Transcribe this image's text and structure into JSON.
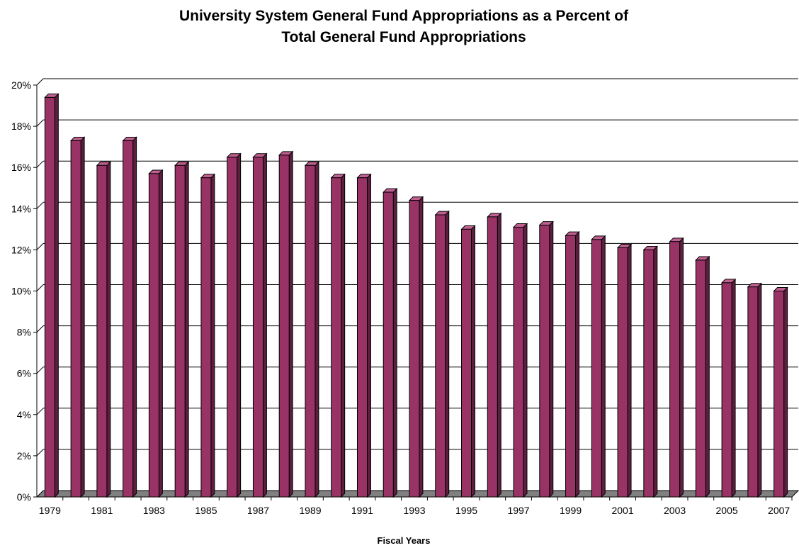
{
  "chart_data": {
    "type": "bar",
    "title_lines": [
      "University System General Fund Appropriations as a Percent of",
      "Total General Fund Appropriations"
    ],
    "xlabel": "Fiscal Years",
    "ylabel": "",
    "ylim": [
      0,
      20
    ],
    "y_ticks": [
      0,
      2,
      4,
      6,
      8,
      10,
      12,
      14,
      16,
      18,
      20
    ],
    "y_tick_labels": [
      "0%",
      "2%",
      "4%",
      "6%",
      "8%",
      "10%",
      "12%",
      "14%",
      "16%",
      "18%",
      "20%"
    ],
    "categories": [
      "1979",
      "1980",
      "1981",
      "1982",
      "1983",
      "1984",
      "1985",
      "1986",
      "1987",
      "1988",
      "1989",
      "1990",
      "1991",
      "1992",
      "1993",
      "1994",
      "1995",
      "1996",
      "1997",
      "1998",
      "1999",
      "2000",
      "2001",
      "2002",
      "2003",
      "2004",
      "2005",
      "2006",
      "2007"
    ],
    "x_tick_labels": [
      "1979",
      "",
      "1981",
      "",
      "1983",
      "",
      "1985",
      "",
      "1987",
      "",
      "1989",
      "",
      "1991",
      "",
      "1993",
      "",
      "1995",
      "",
      "1997",
      "",
      "1999",
      "",
      "2001",
      "",
      "2003",
      "",
      "2005",
      "",
      "2007"
    ],
    "values": [
      19.4,
      17.3,
      16.1,
      17.3,
      15.7,
      16.1,
      15.5,
      16.5,
      16.5,
      16.6,
      16.1,
      15.5,
      15.5,
      14.8,
      14.4,
      13.7,
      13.0,
      13.6,
      13.1,
      13.2,
      12.7,
      12.5,
      12.1,
      12.0,
      12.4,
      11.5,
      10.4,
      10.2,
      10.0
    ],
    "grid": true,
    "legend": "none",
    "colors": {
      "bar_front": "#993366",
      "bar_side": "#5e1f3f",
      "bar_top": "#c06090",
      "floor": "#808080",
      "grid": "#000000"
    }
  }
}
